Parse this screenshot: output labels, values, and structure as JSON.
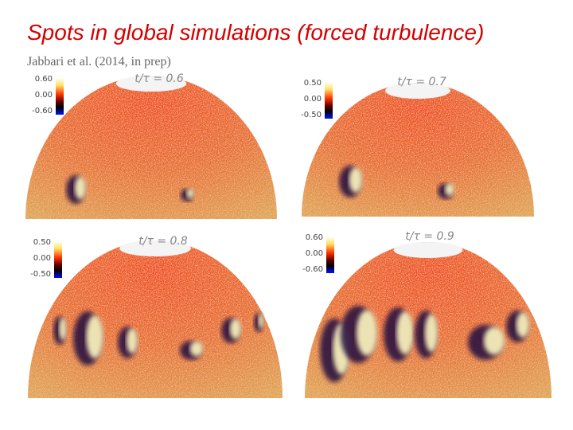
{
  "title": "Spots in global simulations (forced turbulence)",
  "subtitle": "Jabbari et al. (2014, in prep)",
  "panels": [
    {
      "time_label": "t/τ = 0.6",
      "colorbar_ticks": [
        "0.60",
        "0.00",
        "-0.60"
      ]
    },
    {
      "time_label": "t/τ = 0.7",
      "colorbar_ticks": [
        "0.50",
        "0.00",
        "-0.50"
      ]
    },
    {
      "time_label": "t/τ = 0.8",
      "colorbar_ticks": [
        "0.50",
        "0.00",
        "-0.50"
      ]
    },
    {
      "time_label": "t/τ = 0.9",
      "colorbar_ticks": [
        "0.60",
        "0.00",
        "-0.60"
      ]
    }
  ]
}
